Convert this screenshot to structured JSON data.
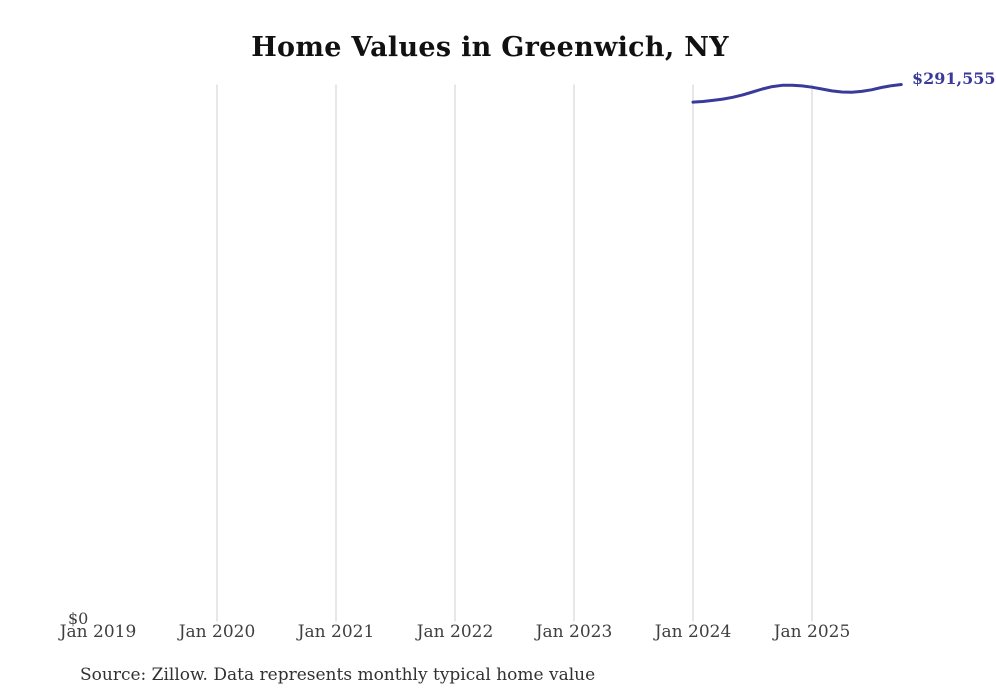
{
  "title": "Home Values in Greenwich, NY",
  "source_note": "Source: Zillow. Data represents monthly typical home value",
  "y_axis": {
    "zero_label": "$0"
  },
  "end_value_label": "$291,555",
  "colors": {
    "line": "#3a3a9b",
    "end_label_text": "#3a3a9b",
    "gridline": "#d7d7d7",
    "axis_text": "#3f3f3f",
    "title_text": "#111111",
    "source_text": "#313131",
    "background": "#ffffff"
  },
  "x_axis": {
    "ticks": [
      {
        "label": "Jan 2019",
        "gridline": false
      },
      {
        "label": "Jan 2020",
        "gridline": true
      },
      {
        "label": "Jan 2021",
        "gridline": true
      },
      {
        "label": "Jan 2022",
        "gridline": true
      },
      {
        "label": "Jan 2023",
        "gridline": true
      },
      {
        "label": "Jan 2024",
        "gridline": true
      },
      {
        "label": "Jan 2025",
        "gridline": true
      }
    ]
  },
  "chart_data": {
    "type": "line",
    "title": "Home Values in Greenwich, NY",
    "xlabel": "",
    "ylabel": "",
    "ylim": [
      0,
      320000
    ],
    "y_zero_label": "$0",
    "grid": "vertical-only",
    "legend": "none",
    "x_tick_labels": [
      "Jan 2019",
      "Jan 2020",
      "Jan 2021",
      "Jan 2022",
      "Jan 2023",
      "Jan 2024",
      "Jan 2025"
    ],
    "series": [
      {
        "name": "Monthly typical home value",
        "x": [
          "Jan 2024",
          "Feb 2024",
          "Mar 2024",
          "Apr 2024",
          "May 2024",
          "Jun 2024",
          "Jul 2024",
          "Aug 2024",
          "Sep 2024",
          "Oct 2024",
          "Nov 2024",
          "Dec 2024",
          "Jan 2025",
          "Feb 2025",
          "Mar 2025",
          "Apr 2025",
          "May 2025",
          "Jun 2025",
          "Jul 2025",
          "Aug 2025",
          "Sep 2025",
          "Oct 2025"
        ],
        "values": [
          282000,
          282300,
          282900,
          283600,
          284600,
          285900,
          287500,
          289100,
          290400,
          291100,
          291200,
          290800,
          290100,
          289100,
          288100,
          287500,
          287300,
          287800,
          288700,
          289900,
          290900,
          291555
        ]
      }
    ],
    "end_annotation": "$291,555"
  }
}
